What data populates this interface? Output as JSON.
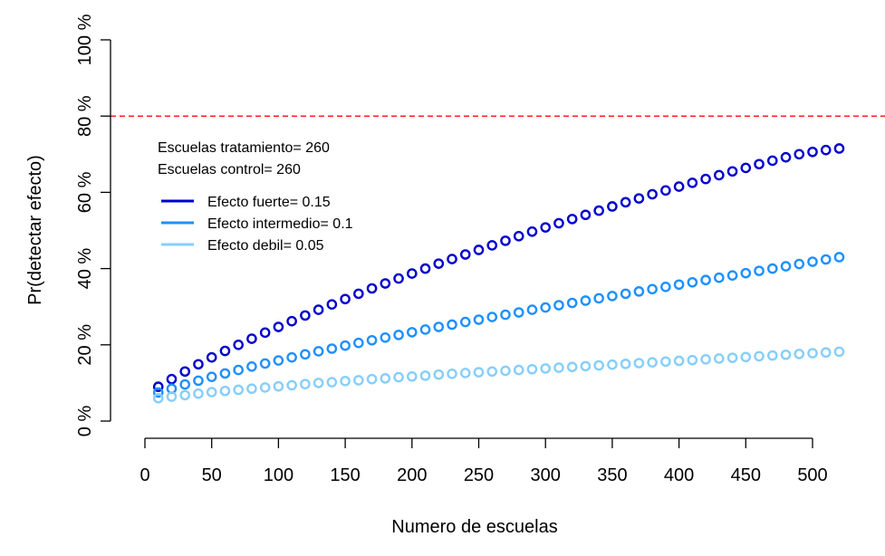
{
  "chart_data": {
    "type": "scatter",
    "xlabel": "Numero de escuelas",
    "ylabel": "Pr(detectar efecto)",
    "xlim": [
      0,
      520
    ],
    "ylim": [
      0,
      1
    ],
    "x_ticks": [
      0,
      50,
      100,
      150,
      200,
      250,
      300,
      350,
      400,
      450,
      500
    ],
    "x_tick_labels": [
      "0",
      "50",
      "100",
      "150",
      "200",
      "250",
      "300",
      "350",
      "400",
      "450",
      "500"
    ],
    "y_ticks": [
      0,
      0.2,
      0.4,
      0.6,
      0.8,
      1.0
    ],
    "y_tick_labels": [
      "0 %",
      "20 %",
      "40 %",
      "60 %",
      "80 %",
      "100 %"
    ],
    "reference_line": {
      "y": 0.8,
      "color": "#ff2020",
      "style": "dashed"
    },
    "grid": false,
    "annotations": [
      "Escuelas tratamiento= 260",
      "Escuelas control= 260"
    ],
    "legend_position": "top-left",
    "x": [
      10,
      20,
      30,
      40,
      50,
      60,
      70,
      80,
      90,
      100,
      110,
      120,
      130,
      140,
      150,
      160,
      170,
      180,
      190,
      200,
      210,
      220,
      230,
      240,
      250,
      260,
      270,
      280,
      290,
      300,
      310,
      320,
      330,
      340,
      350,
      360,
      370,
      380,
      390,
      400,
      410,
      420,
      430,
      440,
      450,
      460,
      470,
      480,
      490,
      500,
      510,
      520
    ],
    "series": [
      {
        "name": "Efecto fuerte= 0.15",
        "color": "#0000cd",
        "values": [
          0.09,
          0.11,
          0.13,
          0.149,
          0.167,
          0.184,
          0.2,
          0.216,
          0.232,
          0.247,
          0.262,
          0.277,
          0.292,
          0.306,
          0.32,
          0.334,
          0.348,
          0.361,
          0.374,
          0.387,
          0.4,
          0.413,
          0.425,
          0.437,
          0.449,
          0.461,
          0.473,
          0.485,
          0.497,
          0.508,
          0.519,
          0.53,
          0.541,
          0.552,
          0.563,
          0.574,
          0.584,
          0.595,
          0.605,
          0.615,
          0.625,
          0.635,
          0.645,
          0.655,
          0.664,
          0.674,
          0.683,
          0.692,
          0.7,
          0.706,
          0.711,
          0.715
        ]
      },
      {
        "name": "Efecto intermedio= 0.1",
        "color": "#1e90ff",
        "values": [
          0.075,
          0.085,
          0.096,
          0.106,
          0.116,
          0.125,
          0.134,
          0.143,
          0.151,
          0.159,
          0.167,
          0.175,
          0.183,
          0.19,
          0.198,
          0.205,
          0.212,
          0.219,
          0.226,
          0.233,
          0.24,
          0.247,
          0.253,
          0.26,
          0.266,
          0.273,
          0.279,
          0.285,
          0.292,
          0.298,
          0.304,
          0.31,
          0.316,
          0.322,
          0.328,
          0.334,
          0.34,
          0.346,
          0.352,
          0.358,
          0.364,
          0.37,
          0.376,
          0.382,
          0.388,
          0.394,
          0.4,
          0.406,
          0.412,
          0.418,
          0.424,
          0.43
        ]
      },
      {
        "name": "Efecto debil= 0.05",
        "color": "#87cefa",
        "values": [
          0.06,
          0.064,
          0.068,
          0.072,
          0.076,
          0.079,
          0.082,
          0.085,
          0.088,
          0.091,
          0.094,
          0.097,
          0.1,
          0.102,
          0.105,
          0.107,
          0.11,
          0.112,
          0.115,
          0.117,
          0.119,
          0.122,
          0.124,
          0.126,
          0.128,
          0.13,
          0.132,
          0.134,
          0.136,
          0.138,
          0.14,
          0.142,
          0.144,
          0.146,
          0.148,
          0.15,
          0.152,
          0.154,
          0.156,
          0.158,
          0.16,
          0.162,
          0.164,
          0.166,
          0.168,
          0.17,
          0.172,
          0.174,
          0.176,
          0.178,
          0.18,
          0.182
        ]
      }
    ]
  }
}
